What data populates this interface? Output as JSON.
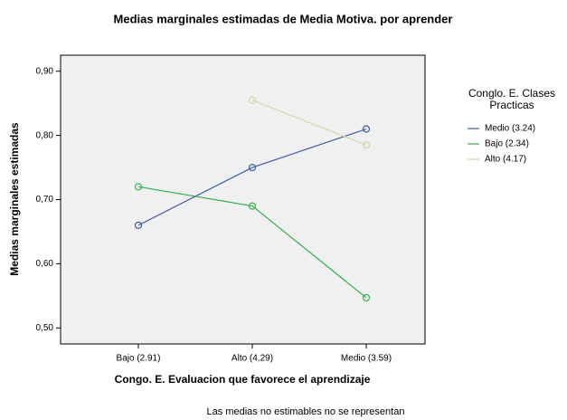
{
  "chart_data": {
    "type": "line",
    "title": "Medias marginales estimadas de Media Motiva. por aprender",
    "x_label": "Congo. E. Evaluacion que favorece el aprendizaje",
    "y_label": "Medias marginales estimadas",
    "legend_title": "Conglo. E. Clases Practicas",
    "footnote": "Las medias no estimables no se representan",
    "categories": [
      "Bajo (2.91)",
      "Alto (4.29)",
      "Medio (3.59)"
    ],
    "series": [
      {
        "name": "Medio (3.24)",
        "color": "#3d5ca8",
        "values": [
          0.66,
          0.75,
          0.81
        ]
      },
      {
        "name": "Bajo (2.34)",
        "color": "#2fb34a",
        "values": [
          0.72,
          0.69,
          0.547
        ]
      },
      {
        "name": "Alto (4.17)",
        "color": "#d9d5a3",
        "values": [
          null,
          0.855,
          0.785
        ]
      }
    ],
    "ylim": [
      0.475,
      0.925
    ],
    "yticks": [
      {
        "value": 0.5,
        "label": "0,50"
      },
      {
        "value": 0.6,
        "label": "0,60"
      },
      {
        "value": 0.7,
        "label": "0,70"
      },
      {
        "value": 0.8,
        "label": "0,80"
      },
      {
        "value": 0.9,
        "label": "0,90"
      }
    ],
    "legend_position": "right"
  }
}
